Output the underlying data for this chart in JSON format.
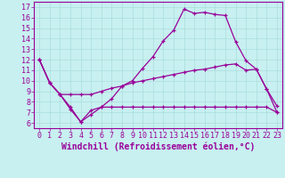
{
  "xlabel": "Windchill (Refroidissement éolien,°C)",
  "ylabel": "",
  "background_color": "#c8f0f0",
  "line_color": "#990099",
  "grid_color": "#aadddd",
  "x_ticks": [
    0,
    1,
    2,
    3,
    4,
    5,
    6,
    7,
    8,
    9,
    10,
    11,
    12,
    13,
    14,
    15,
    16,
    17,
    18,
    19,
    20,
    21,
    22,
    23
  ],
  "y_ticks": [
    6,
    7,
    8,
    9,
    10,
    11,
    12,
    13,
    14,
    15,
    16,
    17
  ],
  "ylim": [
    5.5,
    17.5
  ],
  "xlim": [
    -0.5,
    23.5
  ],
  "line1": [
    12,
    9.8,
    8.7,
    7.3,
    6.1,
    7.2,
    7.5,
    8.3,
    9.5,
    10.0,
    11.2,
    12.3,
    13.8,
    14.8,
    16.8,
    16.4,
    16.5,
    16.3,
    16.2,
    13.7,
    11.9,
    11.1,
    9.2,
    7.6
  ],
  "line2": [
    12,
    9.8,
    8.7,
    7.5,
    6.1,
    6.8,
    7.5,
    7.5,
    7.5,
    7.5,
    7.5,
    7.5,
    7.5,
    7.5,
    7.5,
    7.5,
    7.5,
    7.5,
    7.5,
    7.5,
    7.5,
    7.5,
    7.5,
    7.0
  ],
  "line3": [
    12,
    9.8,
    8.7,
    8.7,
    8.7,
    8.7,
    9.0,
    9.3,
    9.5,
    9.8,
    10.0,
    10.2,
    10.4,
    10.6,
    10.8,
    11.0,
    11.1,
    11.3,
    11.5,
    11.6,
    11.0,
    11.1,
    9.2,
    7.0
  ],
  "fontsize_label": 7,
  "fontsize_tick": 6
}
